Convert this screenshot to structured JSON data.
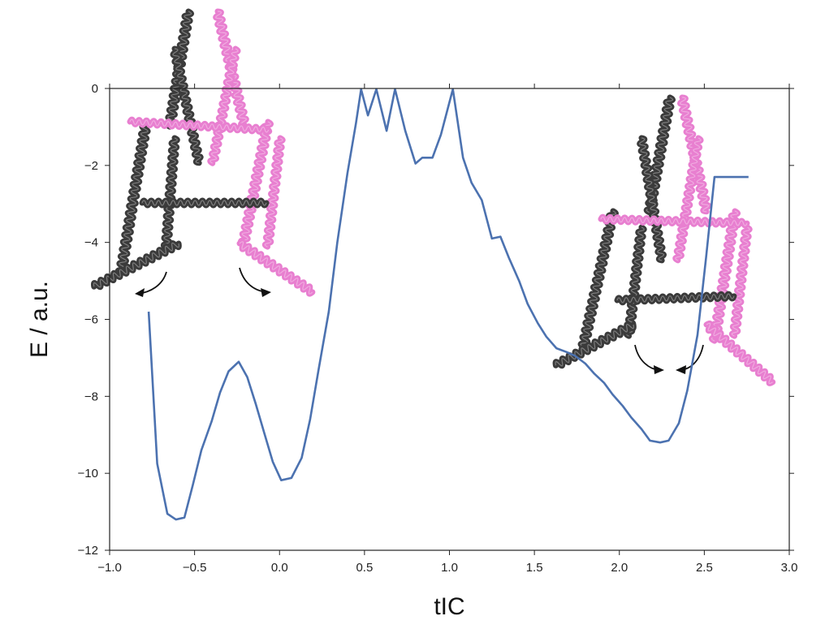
{
  "chart_data": {
    "type": "line",
    "xlabel": "tIC",
    "ylabel": "E / a.u.",
    "xlim": [
      -1.0,
      3.0
    ],
    "ylim": [
      -12,
      0
    ],
    "xticks": [
      -1.0,
      -0.5,
      0.0,
      0.5,
      1.0,
      1.5,
      2.0,
      2.5,
      3.0
    ],
    "xtick_labels": [
      "−1.0",
      "−0.5",
      "0.0",
      "0.5",
      "1.0",
      "1.5",
      "2.0",
      "2.5",
      "3.0"
    ],
    "yticks": [
      0,
      -2,
      -4,
      -6,
      -8,
      -10,
      -12
    ],
    "ytick_labels": [
      "0",
      "−2",
      "−4",
      "−6",
      "−8",
      "−10",
      "−12"
    ],
    "grid": false,
    "series": [
      {
        "color": "#4c72b0",
        "x": [
          -0.77,
          -0.72,
          -0.66,
          -0.61,
          -0.56,
          -0.51,
          -0.46,
          -0.4,
          -0.35,
          -0.3,
          -0.24,
          -0.19,
          -0.14,
          -0.09,
          -0.04,
          0.01,
          0.07,
          0.13,
          0.18,
          0.23,
          0.29,
          0.34,
          0.4,
          0.45,
          0.48,
          0.52,
          0.57,
          0.63,
          0.68,
          0.74,
          0.8,
          0.84,
          0.9,
          0.95,
          1.02,
          1.08,
          1.13,
          1.19,
          1.25,
          1.3,
          1.35,
          1.41,
          1.46,
          1.52,
          1.57,
          1.63,
          1.69,
          1.74,
          1.8,
          1.85,
          1.91,
          1.96,
          2.02,
          2.07,
          2.13,
          2.18,
          2.24,
          2.29,
          2.35,
          2.4,
          2.46,
          2.51,
          2.56,
          2.61,
          2.66,
          2.71,
          2.76
        ],
        "y": [
          -5.8,
          -9.75,
          -11.05,
          -11.2,
          -11.15,
          -10.3,
          -9.4,
          -8.65,
          -7.9,
          -7.35,
          -7.1,
          -7.5,
          -8.2,
          -8.95,
          -9.7,
          -10.18,
          -10.12,
          -9.6,
          -8.6,
          -7.3,
          -5.8,
          -4.0,
          -2.2,
          -0.9,
          -0.02,
          -0.7,
          -0.02,
          -1.1,
          -0.02,
          -1.1,
          -1.95,
          -1.8,
          -1.8,
          -1.2,
          -0.02,
          -1.8,
          -2.45,
          -2.9,
          -3.9,
          -3.85,
          -4.4,
          -5.0,
          -5.6,
          -6.1,
          -6.45,
          -6.75,
          -6.85,
          -6.95,
          -7.15,
          -7.4,
          -7.65,
          -7.95,
          -8.25,
          -8.55,
          -8.85,
          -9.15,
          -9.2,
          -9.15,
          -8.7,
          -7.85,
          -6.4,
          -4.4,
          -2.3,
          -2.3,
          -2.3,
          -2.3,
          -2.3
        ]
      }
    ]
  },
  "illustrations": {
    "left_structure": "protein-structure-open",
    "right_structure": "protein-structure-closed",
    "colors": {
      "chain_a": "#3b3b3b",
      "chain_b": "#e87fd0",
      "arrow": "#111111"
    }
  }
}
